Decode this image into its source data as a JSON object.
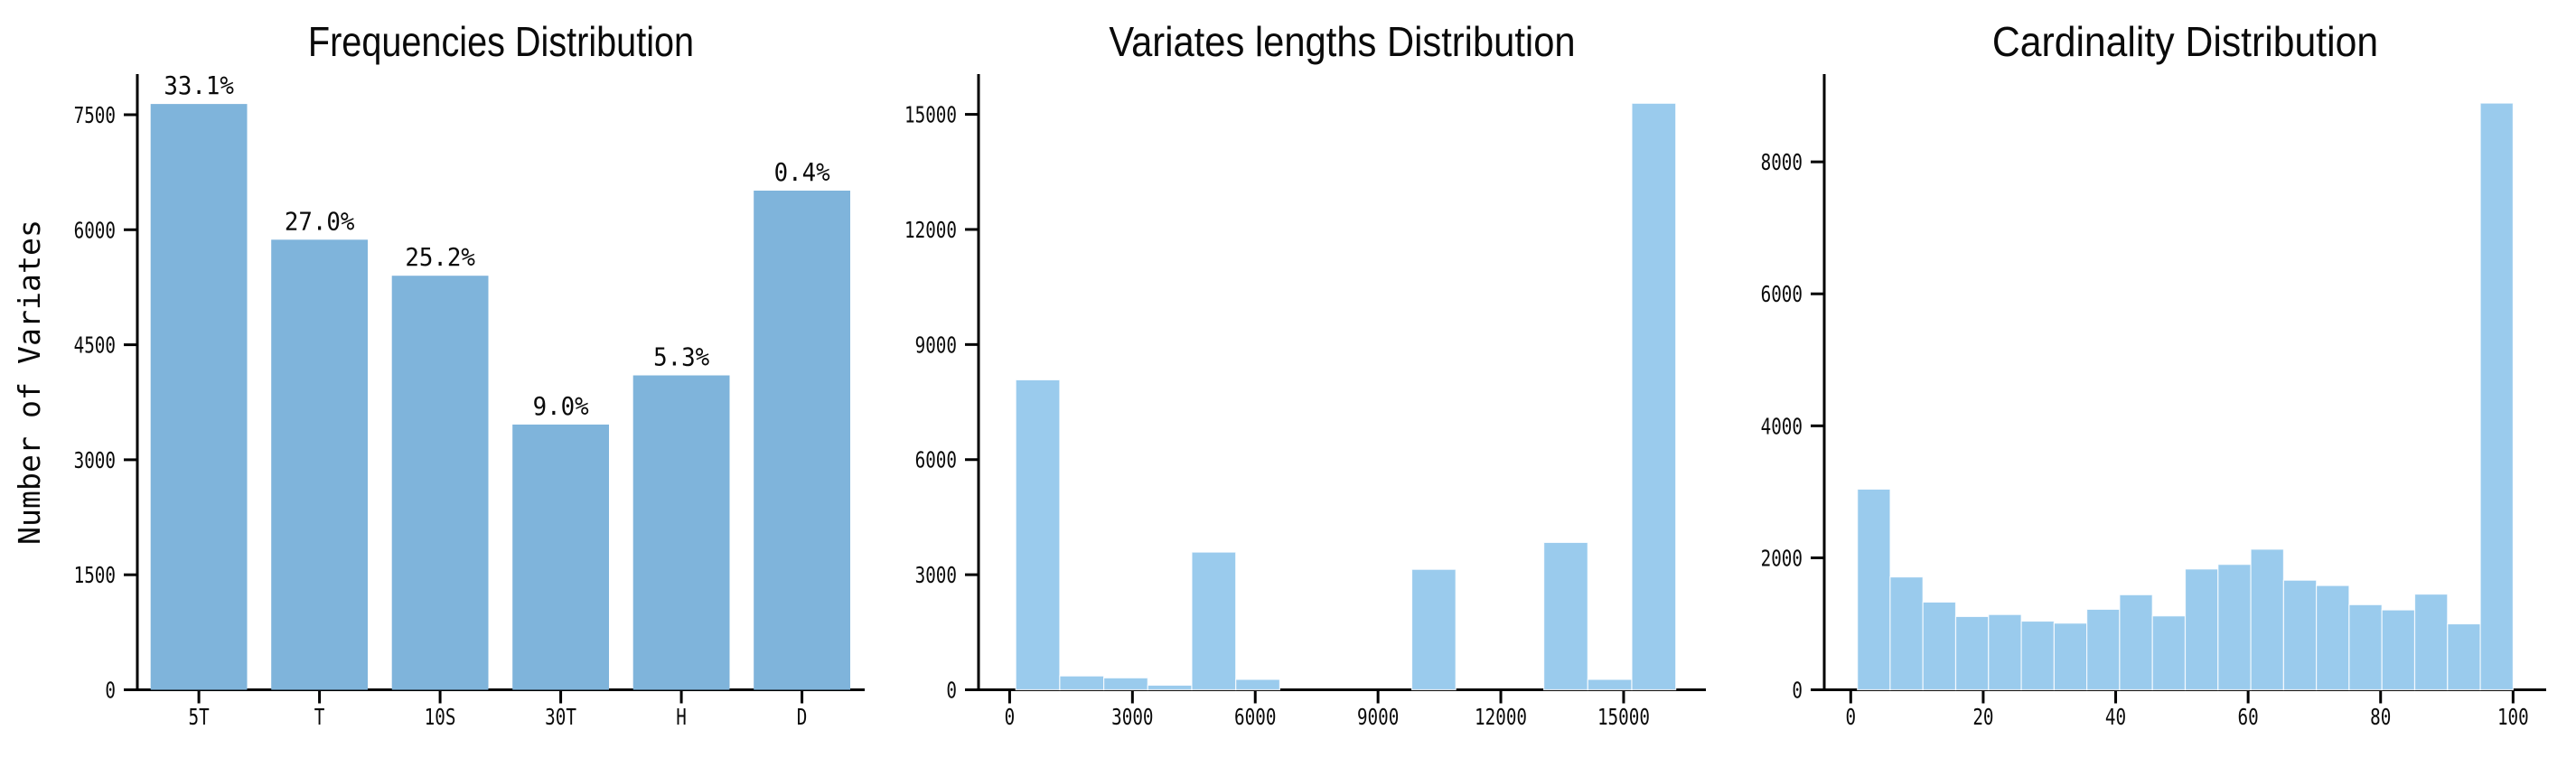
{
  "figure": {
    "background": "#ffffff"
  },
  "chart_data": [
    {
      "type": "bar",
      "title": "Frequencies Distribution",
      "xlabel": "",
      "ylabel": "Number of Variates",
      "categories": [
        "5T",
        "T",
        "10S",
        "30T",
        "H",
        "D"
      ],
      "values": [
        7640,
        5870,
        5400,
        3460,
        4100,
        6510
      ],
      "bar_labels": [
        "33.1%",
        "27.0%",
        "25.2%",
        "9.0%",
        "5.3%",
        "0.4%"
      ],
      "bar_width": 0.8,
      "xlim": [
        -0.51,
        5.52
      ],
      "ylim": [
        0,
        8030
      ],
      "yticks": [
        0,
        1500,
        3000,
        4500,
        6000,
        7500
      ],
      "grid": false,
      "legend": "none",
      "colors": {
        "bar": "#7FB4DB",
        "axis": "#000000"
      }
    },
    {
      "type": "histogram",
      "title": "Variates lengths Distribution",
      "xlabel": "",
      "ylabel": "",
      "bin_start": 150,
      "bin_width": 1075,
      "values": [
        8080,
        360,
        310,
        120,
        3590,
        270,
        0,
        0,
        0,
        3140,
        0,
        0,
        3840,
        270,
        15290
      ],
      "xlim": [
        -760,
        17010
      ],
      "ylim": [
        0,
        16050
      ],
      "xticks": [
        0,
        3000,
        6000,
        9000,
        12000,
        15000
      ],
      "yticks": [
        0,
        3000,
        6000,
        9000,
        12000,
        15000
      ],
      "grid": false,
      "legend": "none",
      "colors": {
        "bar": "#9ACBED",
        "axis": "#000000"
      }
    },
    {
      "type": "histogram",
      "title": "Cardinality Distribution",
      "xlabel": "",
      "ylabel": "",
      "bin_start": 1,
      "bin_width": 4.95,
      "values": [
        3040,
        1710,
        1330,
        1110,
        1140,
        1040,
        1010,
        1220,
        1440,
        1120,
        1830,
        1900,
        2130,
        1660,
        1580,
        1290,
        1210,
        1450,
        1000,
        8890
      ],
      "xlim": [
        -4,
        105
      ],
      "ylim": [
        0,
        9330
      ],
      "xticks": [
        0,
        20,
        40,
        60,
        80,
        100
      ],
      "yticks": [
        0,
        2000,
        4000,
        6000,
        8000
      ],
      "grid": false,
      "legend": "none",
      "colors": {
        "bar": "#9ACBED",
        "axis": "#000000"
      }
    }
  ]
}
